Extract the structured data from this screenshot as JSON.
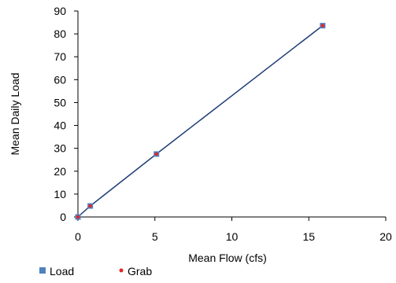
{
  "chart_data": {
    "type": "scatter",
    "xlabel": "Mean Flow (cfs)",
    "ylabel": "Mean Daily Load",
    "xlim": [
      0,
      20
    ],
    "ylim": [
      0,
      90
    ],
    "x_ticks": [
      "0",
      "5",
      "10",
      "15",
      "20"
    ],
    "y_ticks": [
      "0",
      "10",
      "20",
      "30",
      "40",
      "50",
      "60",
      "70",
      "80",
      "90"
    ],
    "grid": false,
    "legend_position": "bottom-left",
    "series": [
      {
        "name": "Load",
        "color": "#4f81bd",
        "line_color": "#1f3f77",
        "marker": "square",
        "points": [
          [
            0,
            0
          ],
          [
            0.8,
            4.8
          ],
          [
            5.1,
            27.5
          ],
          [
            15.9,
            83.6
          ]
        ]
      },
      {
        "name": "Grab",
        "color": "#e3262a",
        "marker": "dot",
        "points": [
          [
            0,
            0
          ],
          [
            0.8,
            4.8
          ],
          [
            5.1,
            27.5
          ],
          [
            15.9,
            83.6
          ]
        ]
      }
    ]
  }
}
